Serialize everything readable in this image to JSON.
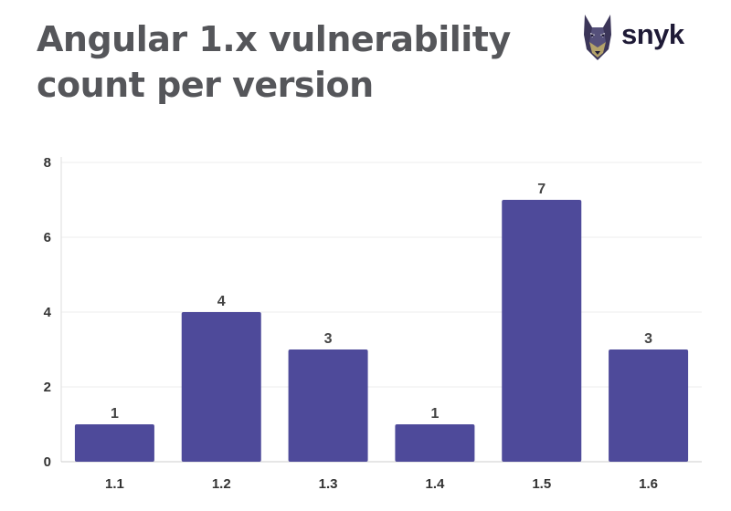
{
  "title": "Angular 1.x vulnerability count per version",
  "logo": {
    "text": "snyk",
    "icon": "doberman-icon"
  },
  "colors": {
    "bar": "#4e4a9a",
    "title": "#55565a",
    "grid": "#eeeeee"
  },
  "chart_data": {
    "type": "bar",
    "categories": [
      "1.1",
      "1.2",
      "1.3",
      "1.4",
      "1.5",
      "1.6"
    ],
    "values": [
      1,
      4,
      3,
      1,
      7,
      3
    ],
    "yticks": [
      0,
      2,
      4,
      6,
      8
    ],
    "ylim": [
      0,
      8
    ],
    "grid": true,
    "data_labels": true,
    "title": "Angular 1.x vulnerability count per version",
    "xlabel": "",
    "ylabel": ""
  }
}
